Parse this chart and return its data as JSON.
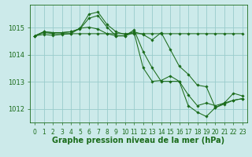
{
  "bg_color": "#cceaea",
  "grid_color": "#99cccc",
  "line_color": "#1a6b1a",
  "marker_color": "#1a6b1a",
  "xlabel": "Graphe pression niveau de la mer (hPa)",
  "xlabel_fontsize": 7,
  "tick_fontsize": 5.5,
  "ylim": [
    1011.5,
    1015.85
  ],
  "yticks": [
    1012,
    1013,
    1014,
    1015
  ],
  "xlim": [
    -0.5,
    23.5
  ],
  "xticks": [
    0,
    1,
    2,
    3,
    4,
    5,
    6,
    7,
    8,
    9,
    10,
    11,
    12,
    13,
    14,
    15,
    16,
    17,
    18,
    19,
    20,
    21,
    22,
    23
  ],
  "series": [
    [
      1014.7,
      1014.82,
      1014.78,
      1014.78,
      1014.78,
      1014.78,
      1014.78,
      1014.78,
      1014.78,
      1014.78,
      1014.78,
      1014.78,
      1014.78,
      1014.78,
      1014.78,
      1014.78,
      1014.78,
      1014.78,
      1014.78,
      1014.78,
      1014.78,
      1014.78,
      1014.78,
      1014.78
    ],
    [
      1014.7,
      1014.85,
      1014.82,
      1014.82,
      1014.85,
      1014.97,
      1015.5,
      1015.58,
      1015.12,
      1014.85,
      1014.75,
      1014.85,
      1014.75,
      1014.55,
      1014.82,
      1014.2,
      1013.58,
      1013.28,
      1012.88,
      1012.82,
      1012.05,
      1012.22,
      1012.58,
      1012.48
    ],
    [
      1014.7,
      1014.85,
      1014.82,
      1014.82,
      1014.85,
      1014.95,
      1015.35,
      1015.45,
      1015.02,
      1014.7,
      1014.7,
      1014.82,
      1013.52,
      1013.02,
      1013.05,
      1013.22,
      1013.02,
      1012.12,
      1011.88,
      1011.72,
      1012.05,
      1012.18,
      1012.32,
      1012.38
    ],
    [
      1014.7,
      1014.75,
      1014.72,
      1014.75,
      1014.78,
      1014.98,
      1015.02,
      1014.95,
      1014.78,
      1014.7,
      1014.7,
      1014.92,
      1014.12,
      1013.52,
      1013.02,
      1013.02,
      1013.02,
      1012.52,
      1012.12,
      1012.22,
      1012.12,
      1012.22,
      1012.32,
      1012.38
    ]
  ]
}
